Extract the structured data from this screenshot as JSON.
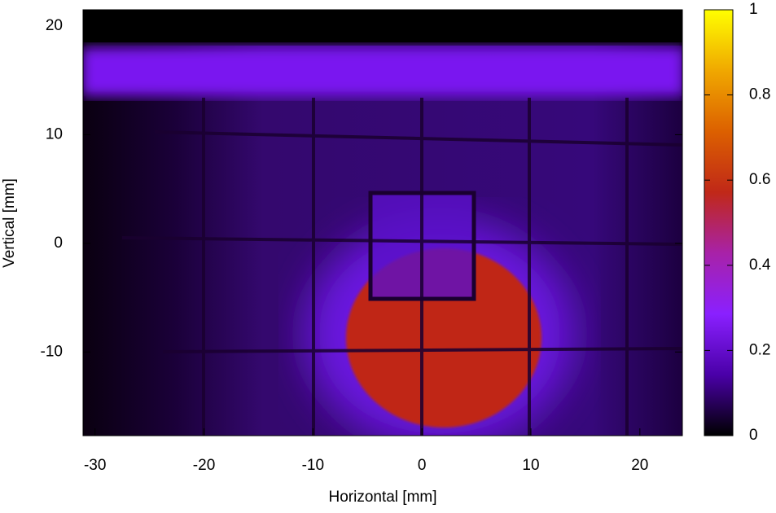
{
  "chart_data": {
    "type": "heatmap",
    "xlabel": "Horizontal [mm]",
    "ylabel": "Vertical [mm]",
    "xlim": [
      -31.1,
      23.9
    ],
    "ylim": [
      -17.7,
      21.5
    ],
    "xticks": [
      -30,
      -20,
      -10,
      0,
      10,
      20
    ],
    "yticks": [
      -10,
      0,
      10,
      20
    ],
    "colorbar": {
      "lim": [
        0,
        1
      ],
      "ticks": [
        0,
        0.2,
        0.4,
        0.6,
        0.8,
        1
      ],
      "colormap": [
        "#000000",
        "#4a00a8",
        "#8a20ff",
        "#a822a8",
        "#c02818",
        "#dc6000",
        "#f0a800",
        "#ffff00"
      ]
    }
  }
}
